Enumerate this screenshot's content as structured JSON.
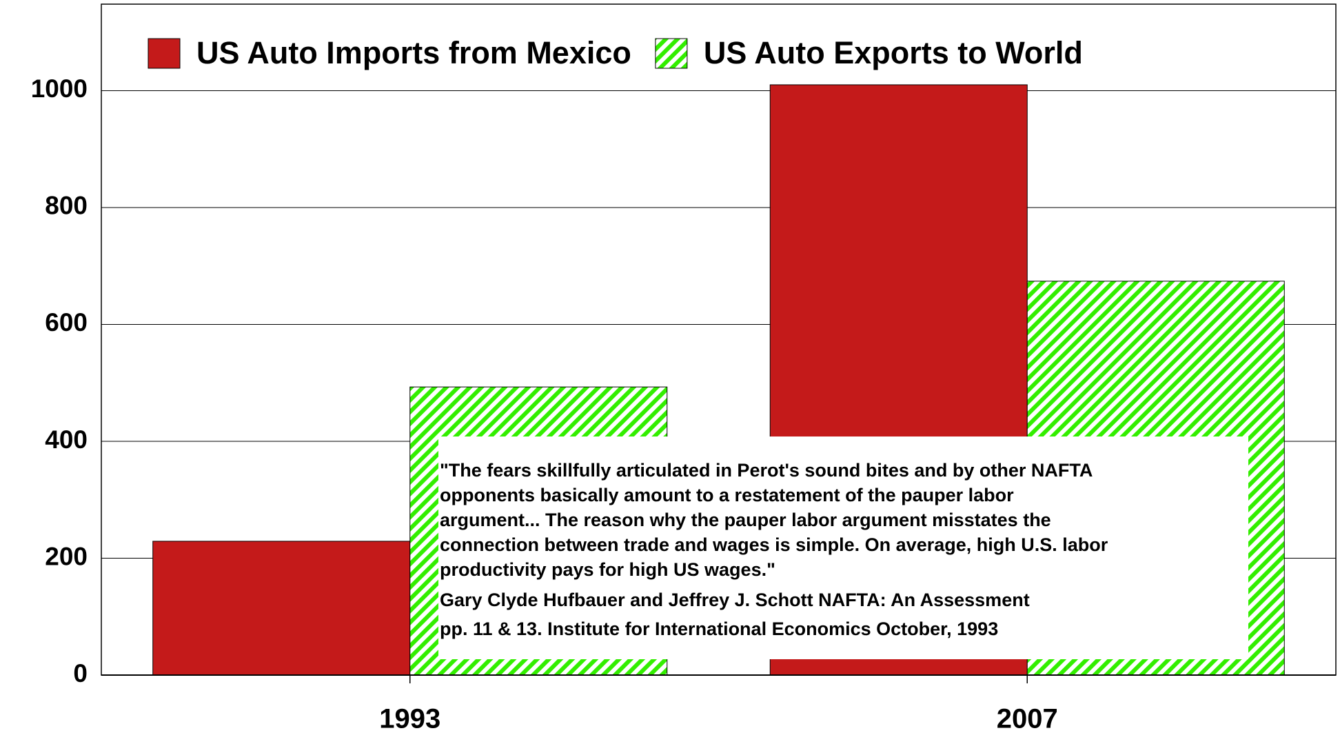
{
  "chart_data": {
    "type": "bar",
    "categories": [
      "1993",
      "2007"
    ],
    "series": [
      {
        "name": "US Auto Imports from Mexico",
        "color": "#c41a1a",
        "hatch": false,
        "values": [
          229,
          1010
        ]
      },
      {
        "name": "US Auto Exports to World",
        "color": "#33ee00",
        "hatch": true,
        "values": [
          493,
          674
        ]
      }
    ],
    "ylim": [
      0,
      1148
    ],
    "yticks": [
      0,
      200,
      400,
      600,
      800,
      1000
    ],
    "grid": true,
    "annotation": {
      "quote": [
        "\"The fears skillfully articulated in Perot's sound bites and by other NAFTA",
        "opponents basically amount to a restatement of the pauper labor",
        "argument... The reason why the pauper labor argument misstates the",
        "connection between trade and wages is simple. On average, high U.S. labor",
        "productivity pays for high US wages.\""
      ],
      "source": [
        "Gary Clyde Hufbauer and Jeffrey J. Schott  NAFTA: An Assessment",
        "pp. 11 & 13. Institute for International Economics  October, 1993"
      ]
    }
  }
}
